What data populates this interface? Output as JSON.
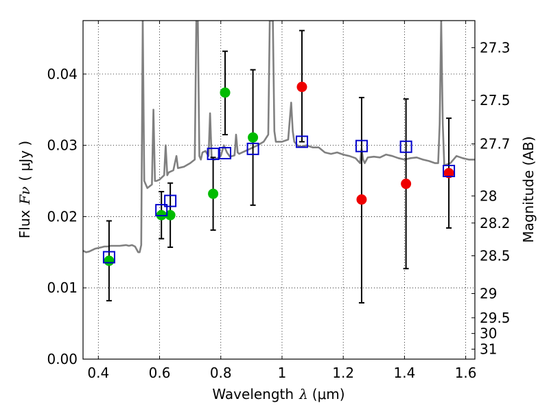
{
  "chart_data": {
    "type": "scatter",
    "xlabel": {
      "pre": "Wavelength",
      "sym": "λ",
      "post": "(μm)"
    },
    "ylabel": {
      "pre": "Flux",
      "sym": "Fν",
      "post": "( μJy )"
    },
    "ylabel_right": "Magnitude (AB)",
    "xlim": [
      0.35,
      1.63
    ],
    "ylim": [
      0.0,
      0.0475
    ],
    "grid": true,
    "x_ticks": [
      0.4,
      0.6,
      0.8,
      1.0,
      1.2,
      1.4,
      1.6
    ],
    "x_tick_labels": [
      "0.4",
      "0.6",
      "0.8",
      "1",
      "1.2",
      "1.4",
      "1.6"
    ],
    "y_ticks": [
      0.0,
      0.01,
      0.02,
      0.03,
      0.04
    ],
    "y_tick_labels": [
      "0.00",
      "0.01",
      "0.02",
      "0.03",
      "0.04"
    ],
    "right_ticks": [
      {
        "label": "27.3",
        "flux": 0.0437
      },
      {
        "label": "27.5",
        "flux": 0.0363
      },
      {
        "label": "27.7",
        "flux": 0.0302
      },
      {
        "label": "28",
        "flux": 0.0229
      },
      {
        "label": "28.2",
        "flux": 0.0191
      },
      {
        "label": "28.5",
        "flux": 0.0145
      },
      {
        "label": "29",
        "flux": 0.0092
      },
      {
        "label": "29.5",
        "flux": 0.0058
      },
      {
        "label": "30",
        "flux": 0.0036
      },
      {
        "label": "31",
        "flux": 0.0014
      }
    ],
    "series": [
      {
        "marker": "circle",
        "color": "#00bb00",
        "points": [
          {
            "x": 0.435,
            "y": 0.0138
          },
          {
            "x": 0.606,
            "y": 0.0202
          },
          {
            "x": 0.635,
            "y": 0.0202
          },
          {
            "x": 0.775,
            "y": 0.0232
          },
          {
            "x": 0.814,
            "y": 0.0374
          },
          {
            "x": 0.905,
            "y": 0.0311
          }
        ]
      },
      {
        "marker": "circle",
        "color": "#ee0000",
        "points": [
          {
            "x": 1.065,
            "y": 0.0382
          },
          {
            "x": 1.26,
            "y": 0.0224
          },
          {
            "x": 1.405,
            "y": 0.0246
          },
          {
            "x": 1.545,
            "y": 0.0261
          }
        ]
      },
      {
        "marker": "square",
        "color": "#0000cc",
        "points": [
          {
            "x": 0.435,
            "y": 0.0143
          },
          {
            "x": 0.606,
            "y": 0.0209
          },
          {
            "x": 0.635,
            "y": 0.0222
          },
          {
            "x": 0.775,
            "y": 0.0288
          },
          {
            "x": 0.814,
            "y": 0.0289
          },
          {
            "x": 0.905,
            "y": 0.0295
          },
          {
            "x": 1.065,
            "y": 0.0305
          },
          {
            "x": 1.26,
            "y": 0.0299
          },
          {
            "x": 1.405,
            "y": 0.0298
          },
          {
            "x": 1.545,
            "y": 0.0264
          }
        ]
      }
    ],
    "error_bars": [
      {
        "x": 0.435,
        "low": 0.0082,
        "high": 0.0194
      },
      {
        "x": 0.606,
        "low": 0.0169,
        "high": 0.0235
      },
      {
        "x": 0.635,
        "low": 0.0157,
        "high": 0.0247
      },
      {
        "x": 0.775,
        "low": 0.0181,
        "high": 0.0283
      },
      {
        "x": 0.814,
        "low": 0.0315,
        "high": 0.0432
      },
      {
        "x": 0.905,
        "low": 0.0216,
        "high": 0.0406
      },
      {
        "x": 1.065,
        "low": 0.0305,
        "high": 0.0461
      },
      {
        "x": 1.26,
        "low": 0.0079,
        "high": 0.0367
      },
      {
        "x": 1.405,
        "low": 0.0127,
        "high": 0.0365
      },
      {
        "x": 1.545,
        "low": 0.0184,
        "high": 0.0338
      }
    ],
    "spectrum": {
      "color": "#808080",
      "x": [
        0.35,
        0.36,
        0.37,
        0.38,
        0.39,
        0.4,
        0.41,
        0.42,
        0.43,
        0.44,
        0.45,
        0.47,
        0.49,
        0.5,
        0.51,
        0.52,
        0.53,
        0.535,
        0.54,
        0.545,
        0.55,
        0.56,
        0.575,
        0.58,
        0.585,
        0.59,
        0.6,
        0.615,
        0.62,
        0.625,
        0.63,
        0.645,
        0.655,
        0.66,
        0.68,
        0.7,
        0.715,
        0.72,
        0.725,
        0.73,
        0.735,
        0.74,
        0.75,
        0.76,
        0.765,
        0.77,
        0.78,
        0.79,
        0.8,
        0.81,
        0.82,
        0.83,
        0.845,
        0.85,
        0.855,
        0.86,
        0.88,
        0.9,
        0.92,
        0.94,
        0.955,
        0.96,
        0.965,
        0.97,
        0.975,
        0.98,
        1.0,
        1.02,
        1.03,
        1.035,
        1.04,
        1.05,
        1.06,
        1.08,
        1.1,
        1.12,
        1.14,
        1.16,
        1.18,
        1.2,
        1.22,
        1.24,
        1.255,
        1.26,
        1.265,
        1.27,
        1.28,
        1.3,
        1.32,
        1.34,
        1.36,
        1.38,
        1.4,
        1.42,
        1.44,
        1.46,
        1.48,
        1.5,
        1.51,
        1.515,
        1.52,
        1.525,
        1.53,
        1.55,
        1.57,
        1.59,
        1.61,
        1.63
      ],
      "y": [
        0.0152,
        0.015,
        0.0151,
        0.0153,
        0.0155,
        0.0156,
        0.0157,
        0.0158,
        0.0158,
        0.0159,
        0.0159,
        0.0159,
        0.016,
        0.0159,
        0.016,
        0.0158,
        0.015,
        0.015,
        0.016,
        0.0475,
        0.025,
        0.024,
        0.0245,
        0.035,
        0.025,
        0.025,
        0.0252,
        0.0258,
        0.03,
        0.0258,
        0.0262,
        0.0265,
        0.0285,
        0.0268,
        0.027,
        0.0275,
        0.028,
        0.0475,
        0.0475,
        0.0285,
        0.028,
        0.029,
        0.0292,
        0.0285,
        0.0345,
        0.0282,
        0.028,
        0.0282,
        0.0285,
        0.03,
        0.029,
        0.0284,
        0.0286,
        0.0315,
        0.029,
        0.0288,
        0.0292,
        0.0296,
        0.03,
        0.0305,
        0.0315,
        0.0475,
        0.0475,
        0.0475,
        0.032,
        0.0305,
        0.0305,
        0.0308,
        0.036,
        0.032,
        0.0305,
        0.03,
        0.0298,
        0.03,
        0.0297,
        0.0297,
        0.029,
        0.0288,
        0.029,
        0.0287,
        0.0285,
        0.0282,
        0.0275,
        0.0295,
        0.028,
        0.0275,
        0.0283,
        0.0284,
        0.0283,
        0.0287,
        0.0285,
        0.0282,
        0.028,
        0.0282,
        0.0283,
        0.028,
        0.0278,
        0.0275,
        0.0275,
        0.033,
        0.0475,
        0.033,
        0.0272,
        0.0275,
        0.0285,
        0.0282,
        0.028,
        0.028
      ]
    }
  }
}
